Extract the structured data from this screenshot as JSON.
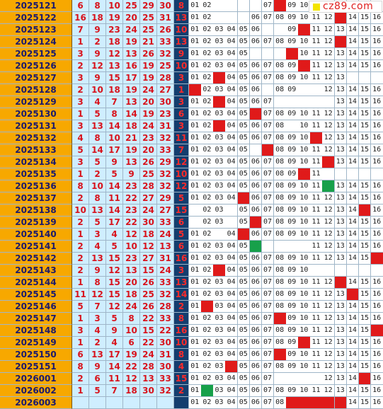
{
  "watermark": {
    "text": "cz89.com",
    "color": "#e0201f"
  },
  "colors": {
    "issue_bg": "#f7a800",
    "red_ball": "#d8131c",
    "blue_bg": "#143e6e",
    "hit": "#e01a1a",
    "hit_green": "#17a04a"
  },
  "chart_data": {
    "type": "table",
    "columns": [
      "issue",
      "red_1",
      "red_2",
      "red_3",
      "red_4",
      "red_5",
      "red_6",
      "blue",
      "blue_trend_01_16"
    ],
    "blue_labels": [
      "01",
      "02",
      "03",
      "04",
      "05",
      "06",
      "07",
      "08",
      "09",
      "10",
      "11",
      "12",
      "13",
      "14",
      "15",
      "16"
    ],
    "rows": [
      {
        "issue": "2025121",
        "reds": [
          "6",
          "8",
          "10",
          "25",
          "29",
          "30"
        ],
        "blue": "8",
        "trend": [
          "01",
          "02",
          "",
          "",
          "",
          "",
          "07",
          "08",
          "09",
          "10",
          "",
          "",
          "",
          "",
          "",
          ""
        ],
        "hit": [
          7
        ],
        "green": []
      },
      {
        "issue": "2025122",
        "reds": [
          "16",
          "18",
          "19",
          "20",
          "25",
          "31"
        ],
        "blue": "13",
        "trend": [
          "01",
          "02",
          "",
          "",
          "",
          "06",
          "07",
          "08",
          "09",
          "10",
          "11",
          "12",
          "13",
          "14",
          "15",
          "16"
        ],
        "hit": [
          12
        ],
        "green": []
      },
      {
        "issue": "2025123",
        "reds": [
          "7",
          "9",
          "23",
          "24",
          "25",
          "26"
        ],
        "blue": "10",
        "trend": [
          "01",
          "02",
          "03",
          "04",
          "05",
          "06",
          "",
          "",
          "09",
          "10",
          "11",
          "12",
          "13",
          "14",
          "15",
          "16"
        ],
        "hit": [
          9
        ],
        "green": []
      },
      {
        "issue": "2025124",
        "reds": [
          "1",
          "2",
          "18",
          "19",
          "21",
          "33"
        ],
        "blue": "13",
        "trend": [
          "01",
          "02",
          "03",
          "04",
          "05",
          "06",
          "07",
          "08",
          "09",
          "10",
          "11",
          "12",
          "13",
          "14",
          "15",
          "16"
        ],
        "hit": [
          12
        ],
        "green": []
      },
      {
        "issue": "2025125",
        "reds": [
          "3",
          "9",
          "12",
          "13",
          "26",
          "32"
        ],
        "blue": "9",
        "trend": [
          "01",
          "02",
          "03",
          "04",
          "05",
          "",
          "",
          "",
          "",
          "10",
          "11",
          "12",
          "13",
          "14",
          "15",
          "16"
        ],
        "hit": [
          8
        ],
        "green": []
      },
      {
        "issue": "2025126",
        "reds": [
          "2",
          "12",
          "13",
          "16",
          "19",
          "25"
        ],
        "blue": "10",
        "trend": [
          "01",
          "02",
          "03",
          "04",
          "05",
          "06",
          "07",
          "08",
          "09",
          "10",
          "11",
          "12",
          "13",
          "14",
          "15",
          "16"
        ],
        "hit": [
          9
        ],
        "green": []
      },
      {
        "issue": "2025127",
        "reds": [
          "3",
          "9",
          "15",
          "17",
          "19",
          "28"
        ],
        "blue": "3",
        "trend": [
          "01",
          "02",
          "03",
          "04",
          "05",
          "06",
          "07",
          "08",
          "09",
          "10",
          "11",
          "12",
          "13",
          "",
          "",
          ""
        ],
        "hit": [
          2
        ],
        "green": []
      },
      {
        "issue": "2025128",
        "reds": [
          "2",
          "10",
          "18",
          "19",
          "24",
          "27"
        ],
        "blue": "1",
        "trend": [
          "01",
          "02",
          "03",
          "04",
          "05",
          "06",
          "",
          "08",
          "09",
          "",
          "",
          "12",
          "13",
          "14",
          "15",
          "16"
        ],
        "hit": [
          0
        ],
        "green": []
      },
      {
        "issue": "2025129",
        "reds": [
          "3",
          "4",
          "7",
          "13",
          "20",
          "30"
        ],
        "blue": "3",
        "trend": [
          "01",
          "02",
          "03",
          "04",
          "05",
          "06",
          "07",
          "",
          "",
          "",
          "",
          "",
          "13",
          "14",
          "15",
          "16"
        ],
        "hit": [
          2
        ],
        "green": []
      },
      {
        "issue": "2025130",
        "reds": [
          "1",
          "5",
          "8",
          "14",
          "19",
          "23"
        ],
        "blue": "6",
        "trend": [
          "01",
          "02",
          "03",
          "04",
          "05",
          "06",
          "07",
          "08",
          "09",
          "10",
          "11",
          "12",
          "13",
          "14",
          "15",
          "16"
        ],
        "hit": [
          5
        ],
        "green": []
      },
      {
        "issue": "2025131",
        "reds": [
          "3",
          "13",
          "14",
          "18",
          "24",
          "31"
        ],
        "blue": "3",
        "trend": [
          "01",
          "02",
          "03",
          "04",
          "05",
          "06",
          "07",
          "08",
          "",
          "10",
          "11",
          "12",
          "13",
          "14",
          "15",
          "16"
        ],
        "hit": [
          2
        ],
        "green": []
      },
      {
        "issue": "2025132",
        "reds": [
          "4",
          "8",
          "10",
          "21",
          "23",
          "32"
        ],
        "blue": "11",
        "trend": [
          "01",
          "02",
          "03",
          "04",
          "05",
          "06",
          "07",
          "08",
          "09",
          "10",
          "11",
          "12",
          "13",
          "14",
          "15",
          "16"
        ],
        "hit": [
          10
        ],
        "green": []
      },
      {
        "issue": "2025133",
        "reds": [
          "5",
          "14",
          "17",
          "19",
          "20",
          "33"
        ],
        "blue": "7",
        "trend": [
          "01",
          "02",
          "03",
          "04",
          "05",
          "",
          "07",
          "08",
          "09",
          "10",
          "11",
          "12",
          "13",
          "14",
          "15",
          "16"
        ],
        "hit": [
          6
        ],
        "green": []
      },
      {
        "issue": "2025134",
        "reds": [
          "3",
          "5",
          "9",
          "13",
          "26",
          "29"
        ],
        "blue": "12",
        "trend": [
          "01",
          "02",
          "03",
          "04",
          "05",
          "06",
          "07",
          "08",
          "09",
          "10",
          "11",
          "12",
          "13",
          "14",
          "15",
          "16"
        ],
        "hit": [
          11
        ],
        "green": []
      },
      {
        "issue": "2025135",
        "reds": [
          "1",
          "2",
          "5",
          "9",
          "25",
          "32"
        ],
        "blue": "10",
        "trend": [
          "01",
          "02",
          "03",
          "04",
          "05",
          "06",
          "07",
          "08",
          "09",
          "10",
          "11",
          "",
          "",
          "",
          "",
          ""
        ],
        "hit": [
          9
        ],
        "green": []
      },
      {
        "issue": "2025136",
        "reds": [
          "8",
          "10",
          "14",
          "23",
          "28",
          "32"
        ],
        "blue": "12",
        "trend": [
          "01",
          "02",
          "03",
          "04",
          "05",
          "06",
          "07",
          "08",
          "09",
          "10",
          "11",
          "12",
          "13",
          "14",
          "15",
          "16"
        ],
        "hit": [],
        "green": [
          11
        ]
      },
      {
        "issue": "2025137",
        "reds": [
          "2",
          "8",
          "11",
          "22",
          "27",
          "29"
        ],
        "blue": "5",
        "trend": [
          "01",
          "02",
          "03",
          "04",
          "05",
          "06",
          "07",
          "08",
          "09",
          "10",
          "11",
          "12",
          "13",
          "14",
          "15",
          "16"
        ],
        "hit": [
          4
        ],
        "green": []
      },
      {
        "issue": "2025138",
        "reds": [
          "10",
          "13",
          "14",
          "23",
          "24",
          "27"
        ],
        "blue": "15",
        "trend": [
          "",
          "02",
          "03",
          "",
          "05",
          "06",
          "07",
          "08",
          "09",
          "10",
          "11",
          "12",
          "13",
          "14",
          "15",
          "16"
        ],
        "hit": [
          14
        ],
        "green": []
      },
      {
        "issue": "2025139",
        "reds": [
          "2",
          "5",
          "17",
          "22",
          "30",
          "33"
        ],
        "blue": "6",
        "trend": [
          "",
          "02",
          "03",
          "",
          "05",
          "06",
          "07",
          "08",
          "09",
          "10",
          "11",
          "12",
          "13",
          "14",
          "15",
          "16"
        ],
        "hit": [
          5
        ],
        "green": []
      },
      {
        "issue": "2025140",
        "reds": [
          "1",
          "3",
          "4",
          "12",
          "18",
          "24"
        ],
        "blue": "5",
        "trend": [
          "01",
          "02",
          "",
          "04",
          "05",
          "06",
          "07",
          "08",
          "09",
          "10",
          "11",
          "12",
          "13",
          "14",
          "15",
          "16"
        ],
        "hit": [
          4
        ],
        "green": []
      },
      {
        "issue": "2025141",
        "reds": [
          "2",
          "4",
          "5",
          "10",
          "12",
          "13"
        ],
        "blue": "6",
        "trend": [
          "01",
          "02",
          "03",
          "04",
          "05",
          "",
          "",
          "",
          "",
          "",
          "11",
          "12",
          "13",
          "14",
          "15",
          "16"
        ],
        "hit": [],
        "green": [
          5
        ]
      },
      {
        "issue": "2025142",
        "reds": [
          "2",
          "13",
          "15",
          "23",
          "27",
          "31"
        ],
        "blue": "16",
        "trend": [
          "01",
          "02",
          "03",
          "04",
          "05",
          "06",
          "07",
          "08",
          "09",
          "10",
          "11",
          "12",
          "13",
          "14",
          "15",
          "16"
        ],
        "hit": [
          15
        ],
        "green": []
      },
      {
        "issue": "2025143",
        "reds": [
          "2",
          "9",
          "12",
          "13",
          "15",
          "24"
        ],
        "blue": "3",
        "trend": [
          "01",
          "02",
          "03",
          "04",
          "05",
          "06",
          "07",
          "08",
          "09",
          "10",
          "",
          "",
          "",
          "",
          "",
          ""
        ],
        "hit": [
          2
        ],
        "green": []
      },
      {
        "issue": "2025144",
        "reds": [
          "1",
          "8",
          "15",
          "20",
          "26",
          "33"
        ],
        "blue": "13",
        "trend": [
          "01",
          "02",
          "03",
          "04",
          "05",
          "06",
          "07",
          "08",
          "09",
          "10",
          "11",
          "12",
          "13",
          "14",
          "15",
          "16"
        ],
        "hit": [
          12
        ],
        "green": []
      },
      {
        "issue": "2025145",
        "reds": [
          "11",
          "12",
          "15",
          "18",
          "25",
          "32"
        ],
        "blue": "14",
        "trend": [
          "01",
          "02",
          "03",
          "04",
          "05",
          "06",
          "07",
          "08",
          "09",
          "10",
          "11",
          "12",
          "13",
          "14",
          "15",
          "16"
        ],
        "hit": [
          13
        ],
        "green": []
      },
      {
        "issue": "2025146",
        "reds": [
          "5",
          "7",
          "12",
          "24",
          "26",
          "28"
        ],
        "blue": "2",
        "trend": [
          "01",
          "02",
          "03",
          "04",
          "05",
          "06",
          "07",
          "08",
          "09",
          "10",
          "11",
          "12",
          "13",
          "14",
          "15",
          "16"
        ],
        "hit": [
          1
        ],
        "green": []
      },
      {
        "issue": "2025147",
        "reds": [
          "1",
          "3",
          "5",
          "8",
          "22",
          "33"
        ],
        "blue": "8",
        "trend": [
          "01",
          "02",
          "03",
          "04",
          "05",
          "06",
          "07",
          "08",
          "09",
          "10",
          "11",
          "12",
          "13",
          "14",
          "15",
          "16"
        ],
        "hit": [
          7
        ],
        "green": []
      },
      {
        "issue": "2025148",
        "reds": [
          "3",
          "4",
          "9",
          "10",
          "15",
          "22"
        ],
        "blue": "16",
        "trend": [
          "01",
          "02",
          "03",
          "04",
          "05",
          "06",
          "07",
          "08",
          "09",
          "10",
          "11",
          "12",
          "13",
          "14",
          "15",
          "16"
        ],
        "hit": [
          15
        ],
        "green": []
      },
      {
        "issue": "2025149",
        "reds": [
          "1",
          "2",
          "4",
          "6",
          "22",
          "30"
        ],
        "blue": "10",
        "trend": [
          "01",
          "02",
          "03",
          "04",
          "05",
          "06",
          "07",
          "08",
          "09",
          "10",
          "11",
          "12",
          "13",
          "14",
          "15",
          "16"
        ],
        "hit": [
          9
        ],
        "green": []
      },
      {
        "issue": "2025150",
        "reds": [
          "6",
          "13",
          "17",
          "19",
          "24",
          "31"
        ],
        "blue": "8",
        "trend": [
          "01",
          "02",
          "03",
          "04",
          "05",
          "06",
          "07",
          "08",
          "09",
          "10",
          "11",
          "12",
          "13",
          "14",
          "15",
          "16"
        ],
        "hit": [
          7
        ],
        "green": []
      },
      {
        "issue": "2025151",
        "reds": [
          "8",
          "9",
          "14",
          "22",
          "28",
          "30"
        ],
        "blue": "4",
        "trend": [
          "01",
          "02",
          "03",
          "04",
          "05",
          "06",
          "07",
          "08",
          "09",
          "10",
          "11",
          "12",
          "13",
          "14",
          "15",
          "16"
        ],
        "hit": [
          3
        ],
        "green": []
      },
      {
        "issue": "2026001",
        "reds": [
          "2",
          "6",
          "11",
          "12",
          "13",
          "33"
        ],
        "blue": "15",
        "trend": [
          "01",
          "02",
          "03",
          "04",
          "05",
          "06",
          "07",
          "",
          "",
          "",
          "",
          "12",
          "13",
          "14",
          "15",
          "16"
        ],
        "hit": [
          14
        ],
        "green": []
      },
      {
        "issue": "2026002",
        "reds": [
          "1",
          "5",
          "7",
          "18",
          "30",
          "32"
        ],
        "blue": "2",
        "trend": [
          "01",
          "02",
          "03",
          "04",
          "05",
          "06",
          "07",
          "08",
          "09",
          "10",
          "11",
          "12",
          "13",
          "14",
          "15",
          "16"
        ],
        "hit": [],
        "green": [
          1
        ]
      },
      {
        "issue": "2026003",
        "reds": [
          "",
          "",
          "",
          "",
          "",
          ""
        ],
        "blue": "",
        "trend": [
          "01",
          "02",
          "03",
          "04",
          "05",
          "06",
          "07",
          "08",
          "",
          "",
          "",
          "",
          "",
          "14",
          "15",
          "16"
        ],
        "hit": [
          8,
          9,
          10,
          11,
          12
        ],
        "green": []
      }
    ]
  }
}
